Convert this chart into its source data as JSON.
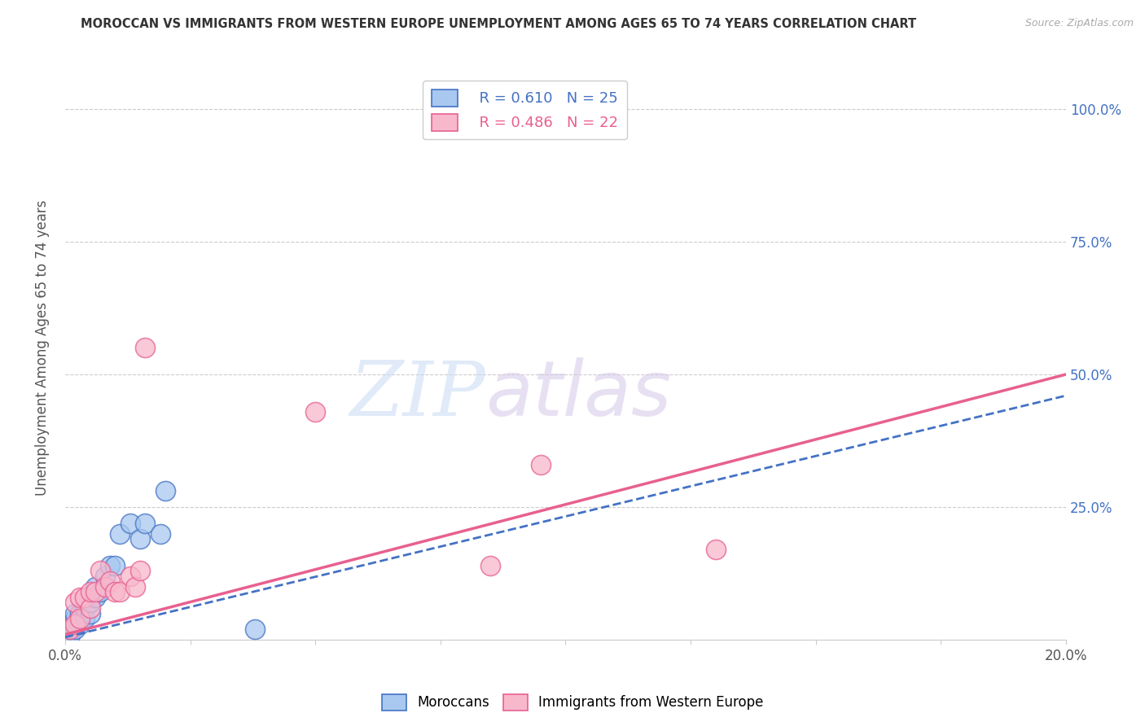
{
  "title": "MOROCCAN VS IMMIGRANTS FROM WESTERN EUROPE UNEMPLOYMENT AMONG AGES 65 TO 74 YEARS CORRELATION CHART",
  "source": "Source: ZipAtlas.com",
  "ylabel": "Unemployment Among Ages 65 to 74 years",
  "legend_blue_r": "R = 0.610",
  "legend_blue_n": "N = 25",
  "legend_pink_r": "R = 0.486",
  "legend_pink_n": "N = 22",
  "blue_color": "#a8c8f0",
  "pink_color": "#f8b8cc",
  "blue_line_color": "#4472c4",
  "pink_line_color": "#e86090",
  "xlim": [
    0.0,
    0.2
  ],
  "ylim": [
    0.0,
    1.1
  ],
  "blue_scatter_x": [
    0.001,
    0.001,
    0.001,
    0.002,
    0.002,
    0.002,
    0.003,
    0.003,
    0.004,
    0.004,
    0.005,
    0.005,
    0.006,
    0.006,
    0.007,
    0.008,
    0.009,
    0.01,
    0.011,
    0.013,
    0.015,
    0.016,
    0.019,
    0.02,
    0.038
  ],
  "blue_scatter_y": [
    0.01,
    0.02,
    0.03,
    0.02,
    0.04,
    0.05,
    0.03,
    0.05,
    0.04,
    0.06,
    0.05,
    0.07,
    0.08,
    0.1,
    0.09,
    0.12,
    0.14,
    0.14,
    0.2,
    0.22,
    0.19,
    0.22,
    0.2,
    0.28,
    0.02
  ],
  "pink_scatter_x": [
    0.001,
    0.002,
    0.002,
    0.003,
    0.003,
    0.004,
    0.005,
    0.005,
    0.006,
    0.007,
    0.008,
    0.009,
    0.01,
    0.011,
    0.013,
    0.014,
    0.015,
    0.016,
    0.05,
    0.085,
    0.095,
    0.13
  ],
  "pink_scatter_y": [
    0.02,
    0.03,
    0.07,
    0.04,
    0.08,
    0.08,
    0.06,
    0.09,
    0.09,
    0.13,
    0.1,
    0.11,
    0.09,
    0.09,
    0.12,
    0.1,
    0.13,
    0.55,
    0.43,
    0.14,
    0.33,
    0.17
  ],
  "pink_trendline_x0": 0.0,
  "pink_trendline_y0": 0.01,
  "pink_trendline_x1": 0.2,
  "pink_trendline_y1": 0.5,
  "blue_trendline_x0": 0.0,
  "blue_trendline_y0": 0.005,
  "blue_trendline_x1": 0.2,
  "blue_trendline_y1": 0.46
}
